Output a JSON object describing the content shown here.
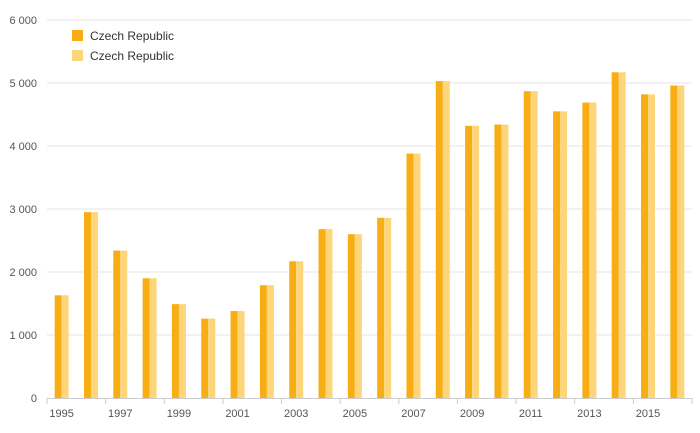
{
  "chart_data": {
    "type": "bar",
    "x": [
      1995,
      1996,
      1997,
      1998,
      1999,
      2000,
      2001,
      2002,
      2003,
      2004,
      2005,
      2006,
      2007,
      2008,
      2009,
      2010,
      2011,
      2012,
      2013,
      2014,
      2015,
      2016
    ],
    "x_tick_labels": [
      "1995",
      "1997",
      "1999",
      "2001",
      "2003",
      "2005",
      "2007",
      "2009",
      "2011",
      "2013",
      "2015"
    ],
    "y_ticks": [
      0,
      1000,
      2000,
      3000,
      4000,
      5000,
      6000
    ],
    "y_tick_labels": [
      "0",
      "1 000",
      "2 000",
      "3 000",
      "4 000",
      "5 000",
      "6 000"
    ],
    "ylim": [
      0,
      6000
    ],
    "grid": true,
    "legend_position": "top-left",
    "series": [
      {
        "name": "Czech Republic",
        "color": "#f7ad13",
        "values": [
          1630,
          2950,
          2340,
          1900,
          1490,
          1260,
          1380,
          1790,
          2170,
          2680,
          2600,
          2860,
          3880,
          5030,
          4320,
          4340,
          4870,
          4550,
          4690,
          5170,
          4820,
          4960
        ]
      },
      {
        "name": "Czech Republic",
        "color": "#fdd57a",
        "values": [
          1630,
          2950,
          2340,
          1900,
          1490,
          1260,
          1380,
          1790,
          2170,
          2680,
          2600,
          2860,
          3880,
          5030,
          4320,
          4340,
          4870,
          4550,
          4690,
          5170,
          4820,
          4960
        ]
      }
    ],
    "title": "",
    "xlabel": "",
    "ylabel": ""
  }
}
